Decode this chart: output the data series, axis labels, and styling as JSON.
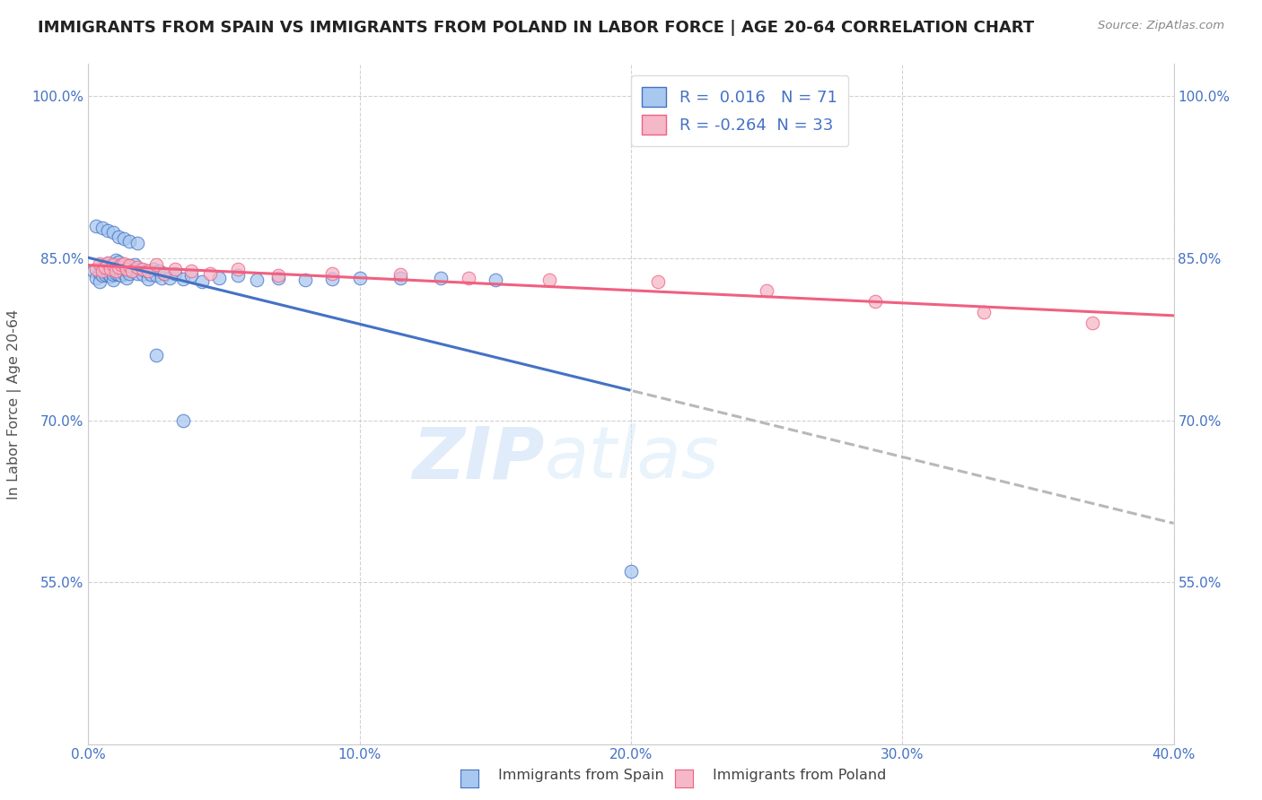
{
  "title": "IMMIGRANTS FROM SPAIN VS IMMIGRANTS FROM POLAND IN LABOR FORCE | AGE 20-64 CORRELATION CHART",
  "source": "Source: ZipAtlas.com",
  "ylabel": "In Labor Force | Age 20-64",
  "xlim": [
    0.0,
    0.4
  ],
  "ylim": [
    0.4,
    1.03
  ],
  "xtick_labels": [
    "0.0%",
    "10.0%",
    "20.0%",
    "30.0%",
    "40.0%"
  ],
  "xtick_vals": [
    0.0,
    0.1,
    0.2,
    0.3,
    0.4
  ],
  "ytick_labels": [
    "55.0%",
    "70.0%",
    "85.0%",
    "100.0%"
  ],
  "ytick_vals": [
    0.55,
    0.7,
    0.85,
    1.0
  ],
  "right_ytick_labels": [
    "100.0%",
    "85.0%",
    "70.0%",
    "55.0%"
  ],
  "right_ytick_vals": [
    1.0,
    0.85,
    0.7,
    0.55
  ],
  "legend_r_spain": "0.016",
  "legend_n_spain": "71",
  "legend_r_poland": "-0.264",
  "legend_n_poland": "33",
  "spain_color": "#a8c8f0",
  "poland_color": "#f4b8c8",
  "spain_line_color": "#4472c4",
  "poland_line_color": "#f06080",
  "trendline_extend_color": "#b8b8b8",
  "watermark_zip": "ZIP",
  "watermark_atlas": "atlas",
  "background_color": "#ffffff",
  "title_fontsize": 13,
  "axis_label_color": "#4472c4",
  "spain_scatter_x": [
    0.002,
    0.003,
    0.004,
    0.004,
    0.005,
    0.005,
    0.005,
    0.006,
    0.006,
    0.006,
    0.007,
    0.007,
    0.007,
    0.008,
    0.008,
    0.009,
    0.009,
    0.009,
    0.01,
    0.01,
    0.01,
    0.011,
    0.011,
    0.011,
    0.012,
    0.012,
    0.013,
    0.013,
    0.014,
    0.014,
    0.015,
    0.015,
    0.016,
    0.017,
    0.018,
    0.019,
    0.02,
    0.021,
    0.022,
    0.023,
    0.024,
    0.025,
    0.026,
    0.027,
    0.028,
    0.03,
    0.032,
    0.035,
    0.038,
    0.042,
    0.048,
    0.055,
    0.062,
    0.07,
    0.08,
    0.09,
    0.1,
    0.115,
    0.13,
    0.15,
    0.003,
    0.005,
    0.007,
    0.009,
    0.011,
    0.013,
    0.015,
    0.018,
    0.025,
    0.035,
    0.2
  ],
  "spain_scatter_y": [
    0.838,
    0.832,
    0.836,
    0.828,
    0.84,
    0.834,
    0.842,
    0.835,
    0.841,
    0.843,
    0.836,
    0.839,
    0.845,
    0.833,
    0.838,
    0.83,
    0.835,
    0.844,
    0.836,
    0.842,
    0.848,
    0.835,
    0.84,
    0.847,
    0.834,
    0.841,
    0.836,
    0.843,
    0.832,
    0.839,
    0.836,
    0.843,
    0.838,
    0.844,
    0.836,
    0.84,
    0.835,
    0.838,
    0.831,
    0.835,
    0.84,
    0.834,
    0.838,
    0.832,
    0.836,
    0.832,
    0.836,
    0.831,
    0.834,
    0.828,
    0.832,
    0.834,
    0.83,
    0.832,
    0.83,
    0.831,
    0.832,
    0.832,
    0.832,
    0.83,
    0.88,
    0.878,
    0.876,
    0.874,
    0.87,
    0.868,
    0.866,
    0.864,
    0.76,
    0.7,
    0.56
  ],
  "poland_scatter_x": [
    0.003,
    0.004,
    0.005,
    0.006,
    0.007,
    0.008,
    0.009,
    0.01,
    0.011,
    0.012,
    0.013,
    0.014,
    0.015,
    0.016,
    0.018,
    0.02,
    0.022,
    0.025,
    0.028,
    0.032,
    0.038,
    0.045,
    0.055,
    0.07,
    0.09,
    0.115,
    0.14,
    0.17,
    0.21,
    0.25,
    0.29,
    0.33,
    0.37
  ],
  "poland_scatter_y": [
    0.84,
    0.845,
    0.838,
    0.842,
    0.846,
    0.84,
    0.844,
    0.838,
    0.842,
    0.844,
    0.845,
    0.84,
    0.843,
    0.838,
    0.842,
    0.84,
    0.838,
    0.844,
    0.836,
    0.84,
    0.838,
    0.836,
    0.84,
    0.834,
    0.836,
    0.835,
    0.832,
    0.83,
    0.828,
    0.82,
    0.81,
    0.8,
    0.79
  ]
}
